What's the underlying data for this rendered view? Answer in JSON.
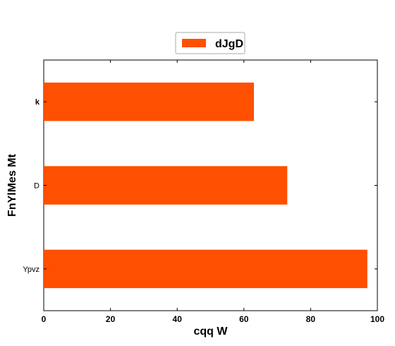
{
  "chart_data": {
    "type": "bar",
    "orientation": "horizontal",
    "categories": [
      "k",
      "D",
      "Ypvz"
    ],
    "series": [
      {
        "name": "dJgD",
        "values": [
          63,
          73,
          97
        ],
        "color": "#ff4f00"
      }
    ],
    "xlabel": "cqq W",
    "ylabel": "FnYlMes Mt",
    "xlim": [
      0,
      100
    ],
    "xticks": [
      "0",
      "20",
      "40",
      "60",
      "80",
      "100"
    ],
    "grid": false,
    "legend_position": "top-center"
  }
}
